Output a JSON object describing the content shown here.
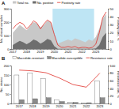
{
  "chart_data": [
    {
      "type": "line",
      "title": "A",
      "ylabel": "No. clinical samples",
      "y2label": "Positivity rate, %",
      "categories": [
        "2017",
        null,
        null,
        null,
        "2018",
        null,
        null,
        null,
        "2019",
        null,
        null,
        null,
        "2020",
        null,
        null,
        null,
        "2021",
        null,
        null,
        null,
        "2022",
        null,
        null,
        null,
        "2023",
        null,
        null,
        null
      ],
      "shaded_region": [
        12,
        23
      ],
      "series": [
        {
          "name": "Total no.",
          "type": "area",
          "color": "#c8c8c8",
          "values": [
            120,
            150,
            180,
            160,
            140,
            170,
            200,
            190,
            160,
            180,
            210,
            200,
            110,
            40,
            50,
            60,
            70,
            60,
            80,
            70,
            60,
            50,
            70,
            60,
            90,
            150,
            230,
            260
          ]
        },
        {
          "name": "No. positive",
          "type": "area",
          "color": "#6e6e6e",
          "values": [
            30,
            45,
            60,
            50,
            35,
            50,
            70,
            60,
            40,
            55,
            75,
            65,
            20,
            2,
            1,
            1,
            2,
            1,
            2,
            1,
            1,
            1,
            1,
            1,
            5,
            30,
            90,
            120
          ]
        },
        {
          "name": "Positivity rate",
          "type": "line",
          "axis": "y2",
          "color": "#e0302a",
          "values": [
            25,
            30,
            33,
            31,
            25,
            29,
            35,
            32,
            25,
            31,
            36,
            33,
            18,
            5,
            2,
            2,
            3,
            2,
            3,
            1,
            2,
            2,
            1,
            2,
            6,
            20,
            39,
            46
          ]
        }
      ],
      "ylim": [
        0,
        300
      ],
      "yticks": [
        0,
        100,
        200,
        300
      ],
      "y2lim": [
        0,
        50
      ],
      "y2ticks": [
        0,
        10,
        20,
        30,
        40,
        50
      ],
      "legend": "top"
    },
    {
      "type": "bar",
      "title": "B",
      "ylabel": "No. strains",
      "y2label": "Resistance rate, %",
      "categories": [
        "2017",
        "2018",
        "2019",
        "2020",
        "2021",
        "2022",
        "2023"
      ],
      "series": [
        {
          "name": "Macrolide-resistant",
          "type": "bar",
          "color": "#ffffff",
          "values": [
            150,
            160,
            130,
            20,
            5,
            3,
            120
          ]
        },
        {
          "name": "Macrolide-susceptible",
          "type": "bar",
          "color": "#8c8c8c",
          "values": [
            20,
            25,
            30,
            10,
            5,
            4,
            30
          ]
        },
        {
          "name": "Resistance rate",
          "type": "line",
          "axis": "y2",
          "color": "#e0302a",
          "values": [
            88,
            86,
            81,
            67,
            50,
            43,
            80
          ]
        }
      ],
      "ylim": [
        0,
        200
      ],
      "yticks": [
        0,
        50,
        100,
        150,
        200
      ],
      "y2lim": [
        0,
        100
      ],
      "y2ticks": [
        0,
        20,
        40,
        60,
        80,
        100
      ],
      "legend": "top"
    }
  ]
}
